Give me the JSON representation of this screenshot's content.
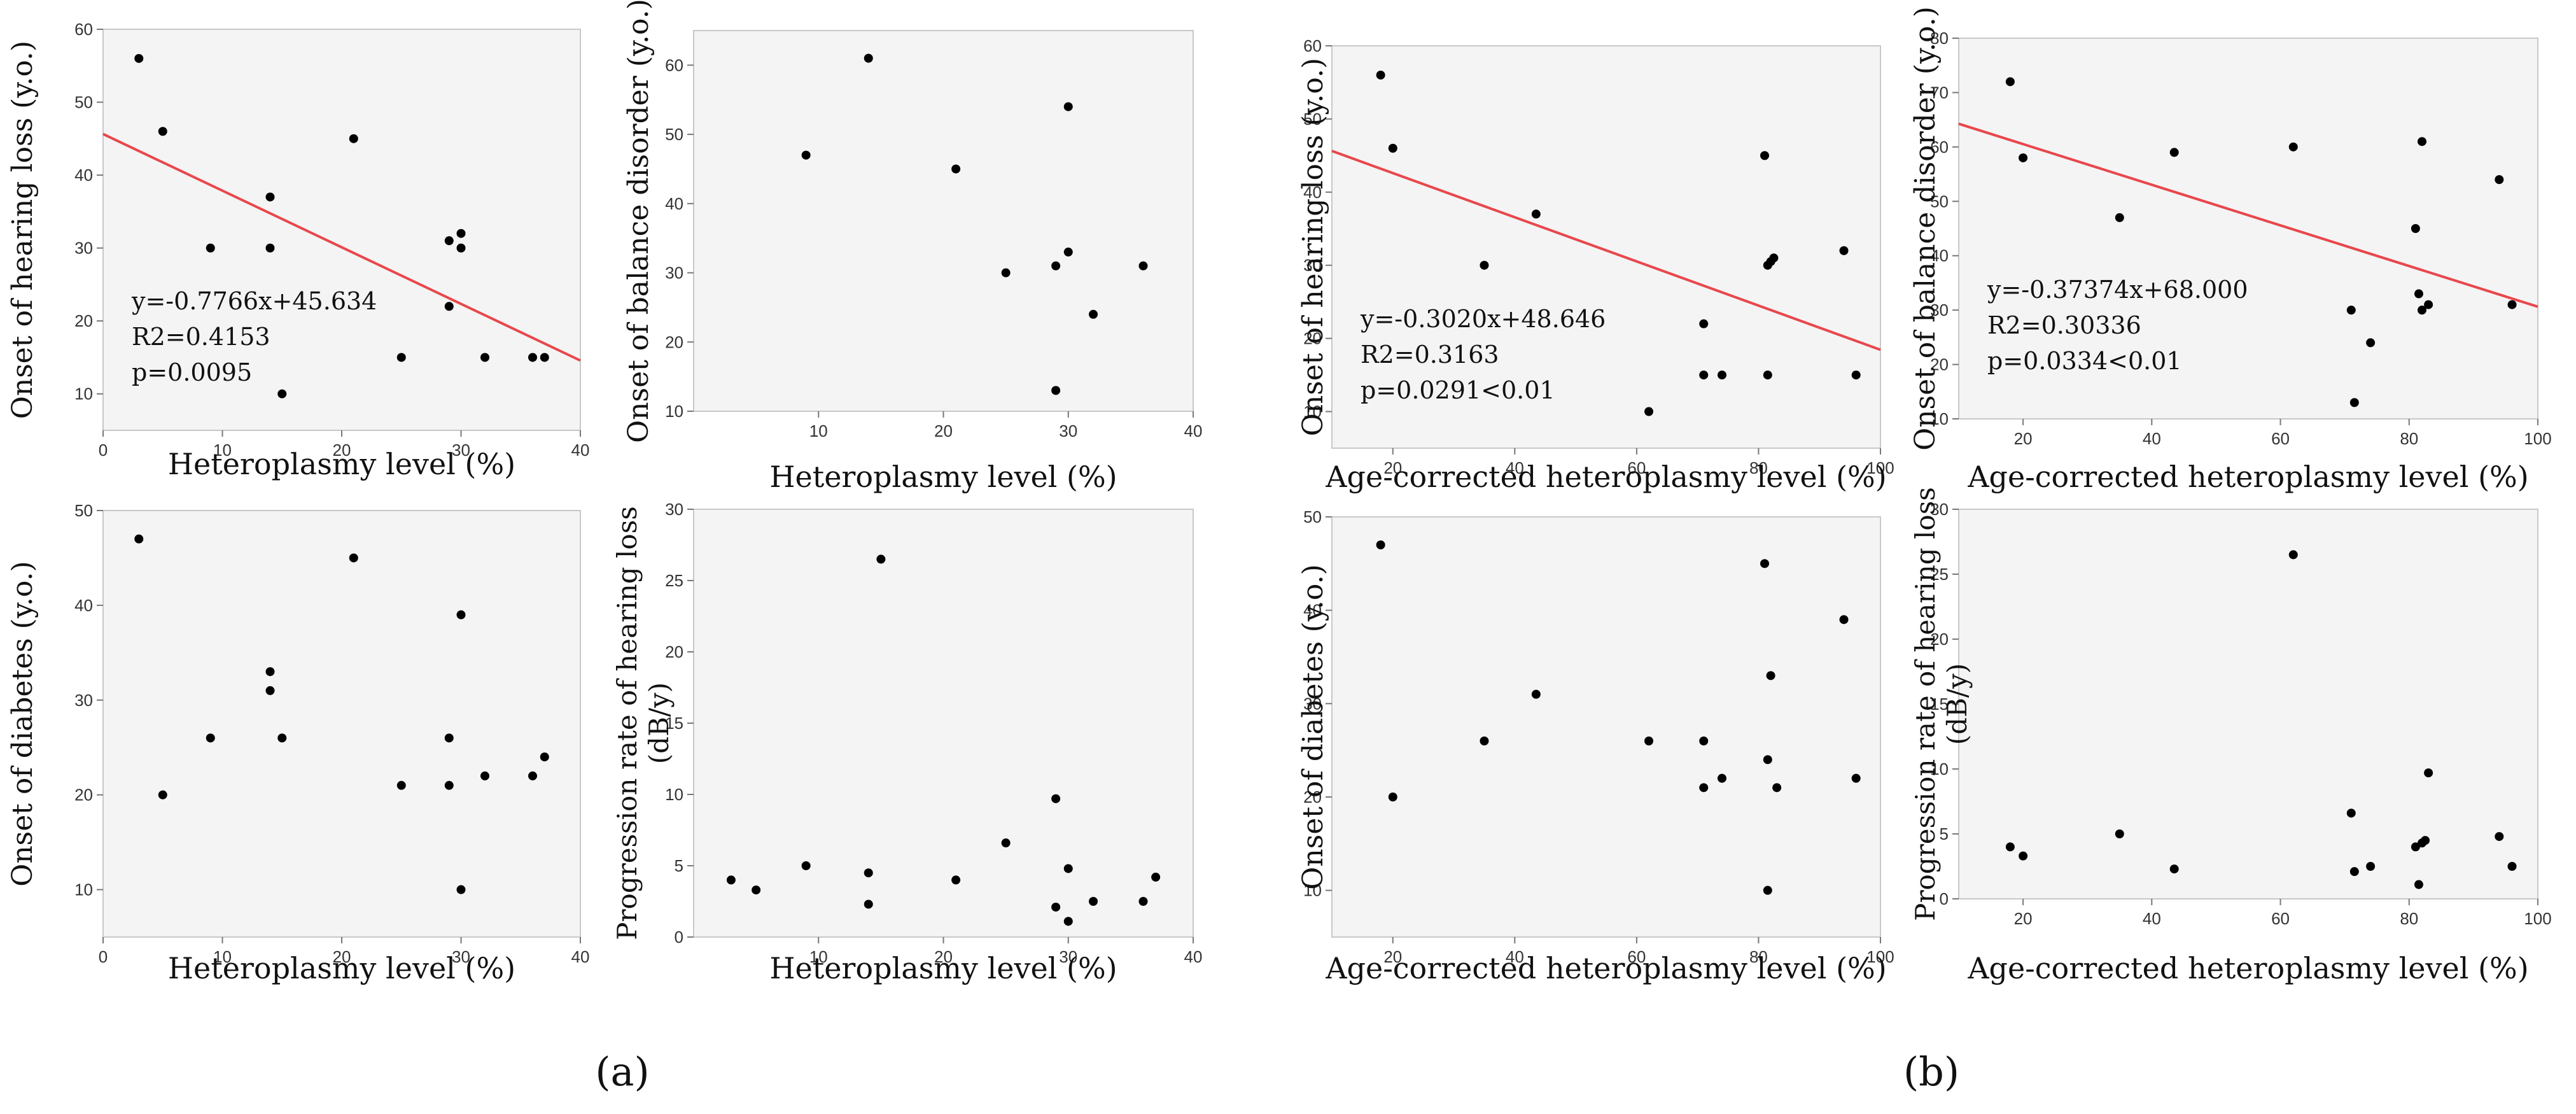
{
  "panel_labels": [
    "(a)",
    "(b)"
  ],
  "chart_data": [
    {
      "id": "a1",
      "type": "scatter",
      "panel": "a",
      "xlabel": "Heteroplasmy level (%)",
      "ylabel": "Onset of  hearing loss (y.o.)",
      "xlim": [
        0,
        40
      ],
      "ylim": [
        5,
        60
      ],
      "xticks": [
        0,
        10,
        20,
        30,
        40
      ],
      "yticks": [
        10,
        20,
        30,
        40,
        50,
        60
      ],
      "points": [
        [
          3,
          56
        ],
        [
          5,
          46
        ],
        [
          9,
          30
        ],
        [
          14,
          37
        ],
        [
          14,
          30
        ],
        [
          15,
          10
        ],
        [
          21,
          45
        ],
        [
          25,
          15
        ],
        [
          29,
          31
        ],
        [
          29,
          22
        ],
        [
          30,
          32
        ],
        [
          30,
          30
        ],
        [
          32,
          15
        ],
        [
          36,
          15
        ],
        [
          37,
          15
        ]
      ],
      "trendline": {
        "slope": -0.7766,
        "intercept": 45.634,
        "color": "#e8474c"
      },
      "annotation": [
        "y=-0.7766x+45.634",
        "R2=0.4153",
        "p=0.0095"
      ]
    },
    {
      "id": "a2",
      "type": "scatter",
      "panel": "a",
      "xlabel": "Heteroplasmy level (%)",
      "ylabel": "Onset of balance disorder (y.o.)",
      "xlim": [
        0,
        40
      ],
      "ylim": [
        10,
        65
      ],
      "xticks": [
        10,
        20,
        30,
        40
      ],
      "yticks": [
        10,
        20,
        30,
        40,
        50,
        60
      ],
      "points": [
        [
          9,
          47
        ],
        [
          14,
          61
        ],
        [
          21,
          45
        ],
        [
          25,
          30
        ],
        [
          29,
          31
        ],
        [
          29,
          13
        ],
        [
          30,
          54
        ],
        [
          30,
          33
        ],
        [
          32,
          24
        ],
        [
          36,
          31
        ]
      ]
    },
    {
      "id": "a3",
      "type": "scatter",
      "panel": "a",
      "xlabel": "Heteroplasmy level (%)",
      "ylabel": "Onset of diabetes (y.o.)",
      "xlim": [
        0,
        40
      ],
      "ylim": [
        5,
        50
      ],
      "xticks": [
        0,
        10,
        20,
        30,
        40
      ],
      "yticks": [
        10,
        20,
        30,
        40,
        50
      ],
      "points": [
        [
          3,
          47
        ],
        [
          5,
          20
        ],
        [
          9,
          26
        ],
        [
          14,
          33
        ],
        [
          14,
          31
        ],
        [
          15,
          26
        ],
        [
          21,
          45
        ],
        [
          25,
          21
        ],
        [
          29,
          26
        ],
        [
          29,
          21
        ],
        [
          30,
          39
        ],
        [
          30,
          10
        ],
        [
          32,
          22
        ],
        [
          36,
          22
        ],
        [
          37,
          24
        ]
      ]
    },
    {
      "id": "a4",
      "type": "scatter",
      "panel": "a",
      "xlabel": "Heteroplasmy level (%)",
      "ylabel": "Progression rate of hearing loss (dB/y)",
      "ylabel_lines": [
        "Progression rate of hearing loss",
        "(dB/y)"
      ],
      "xlim": [
        0,
        40
      ],
      "ylim": [
        0,
        30
      ],
      "xticks": [
        10,
        20,
        30,
        40
      ],
      "yticks": [
        0,
        5,
        10,
        15,
        20,
        25,
        30
      ],
      "points": [
        [
          3,
          4
        ],
        [
          5,
          3.3
        ],
        [
          9,
          5
        ],
        [
          14,
          4.5
        ],
        [
          14,
          2.3
        ],
        [
          15,
          26.5
        ],
        [
          21,
          4
        ],
        [
          25,
          6.6
        ],
        [
          29,
          9.7
        ],
        [
          29,
          2.1
        ],
        [
          30,
          4.8
        ],
        [
          30,
          1.1
        ],
        [
          32,
          2.5
        ],
        [
          36,
          2.5
        ],
        [
          37,
          4.2
        ]
      ]
    },
    {
      "id": "b1",
      "type": "scatter",
      "panel": "b",
      "xlabel": "Age-corrected heteroplasmy level (%)",
      "ylabel": "Onset of hearing loss (y.o.)",
      "xlim": [
        10,
        100
      ],
      "ylim": [
        5,
        60
      ],
      "xticks": [
        20,
        40,
        60,
        80,
        100
      ],
      "yticks": [
        10,
        20,
        30,
        40,
        50,
        60
      ],
      "points": [
        [
          18,
          56
        ],
        [
          20,
          46
        ],
        [
          35,
          30
        ],
        [
          43.5,
          37
        ],
        [
          62,
          10
        ],
        [
          71,
          22
        ],
        [
          71,
          15
        ],
        [
          74,
          15
        ],
        [
          81,
          45
        ],
        [
          81.5,
          30
        ],
        [
          82,
          30.5
        ],
        [
          82.5,
          31
        ],
        [
          81.5,
          15
        ],
        [
          94,
          32
        ],
        [
          96,
          15
        ]
      ],
      "trendline": {
        "slope": -0.302,
        "intercept": 48.646,
        "color": "#e8474c"
      },
      "annotation": [
        "y=-0.3020x+48.646",
        "R2=0.3163",
        "p=0.0291<0.01"
      ]
    },
    {
      "id": "b2",
      "type": "scatter",
      "panel": "b",
      "xlabel": "Age-corrected heteroplasmy level (%)",
      "ylabel": "Onset of balance disorder (y.o.)",
      "xlim": [
        10,
        100
      ],
      "ylim": [
        10,
        80
      ],
      "xticks": [
        20,
        40,
        60,
        80,
        100
      ],
      "yticks": [
        10,
        20,
        30,
        40,
        50,
        60,
        70,
        80
      ],
      "points": [
        [
          18,
          72
        ],
        [
          20,
          58
        ],
        [
          35,
          47
        ],
        [
          43.5,
          59
        ],
        [
          62,
          60
        ],
        [
          71,
          30
        ],
        [
          71.5,
          13
        ],
        [
          74,
          24
        ],
        [
          81,
          45
        ],
        [
          82,
          61
        ],
        [
          81.5,
          33
        ],
        [
          82,
          30
        ],
        [
          83,
          31
        ],
        [
          94,
          54
        ],
        [
          96,
          31
        ]
      ],
      "trendline": {
        "slope": -0.37374,
        "intercept": 68.0,
        "color": "#e8474c"
      },
      "annotation": [
        "y=-0.37374x+68.000",
        "R2=0.30336",
        "p=0.0334<0.01"
      ]
    },
    {
      "id": "b3",
      "type": "scatter",
      "panel": "b",
      "xlabel": "Age-corrected heteroplasmy level (%)",
      "ylabel": "Onset of diabetes (y.o.)",
      "xlim": [
        10,
        100
      ],
      "ylim": [
        5,
        50
      ],
      "xticks": [
        20,
        40,
        60,
        80,
        100
      ],
      "yticks": [
        10,
        20,
        30,
        40,
        50
      ],
      "points": [
        [
          18,
          47
        ],
        [
          20,
          20
        ],
        [
          35,
          26
        ],
        [
          43.5,
          31
        ],
        [
          62,
          26
        ],
        [
          71,
          26
        ],
        [
          71,
          21
        ],
        [
          74,
          22
        ],
        [
          81,
          45
        ],
        [
          82,
          33
        ],
        [
          81.5,
          24
        ],
        [
          83,
          21
        ],
        [
          81.5,
          10
        ],
        [
          94,
          39
        ],
        [
          96,
          22
        ]
      ]
    },
    {
      "id": "b4",
      "type": "scatter",
      "panel": "b",
      "xlabel": "Age-corrected heteroplasmy level (%)",
      "ylabel": "Progression rate of hearing loss (dB/y)",
      "ylabel_lines": [
        "Progression rate of hearing loss",
        "(dB/y)"
      ],
      "xlim": [
        10,
        100
      ],
      "ylim": [
        0,
        30
      ],
      "xticks": [
        20,
        40,
        60,
        80,
        100
      ],
      "yticks": [
        0,
        5,
        10,
        15,
        20,
        25,
        30
      ],
      "points": [
        [
          18,
          4
        ],
        [
          20,
          3.3
        ],
        [
          35,
          5
        ],
        [
          43.5,
          2.3
        ],
        [
          62,
          26.5
        ],
        [
          71,
          6.6
        ],
        [
          71.5,
          2.1
        ],
        [
          74,
          2.5
        ],
        [
          81,
          4
        ],
        [
          82,
          4.3
        ],
        [
          82.5,
          4.5
        ],
        [
          83,
          9.7
        ],
        [
          81.5,
          1.1
        ],
        [
          94,
          4.8
        ],
        [
          96,
          2.5
        ]
      ]
    }
  ]
}
